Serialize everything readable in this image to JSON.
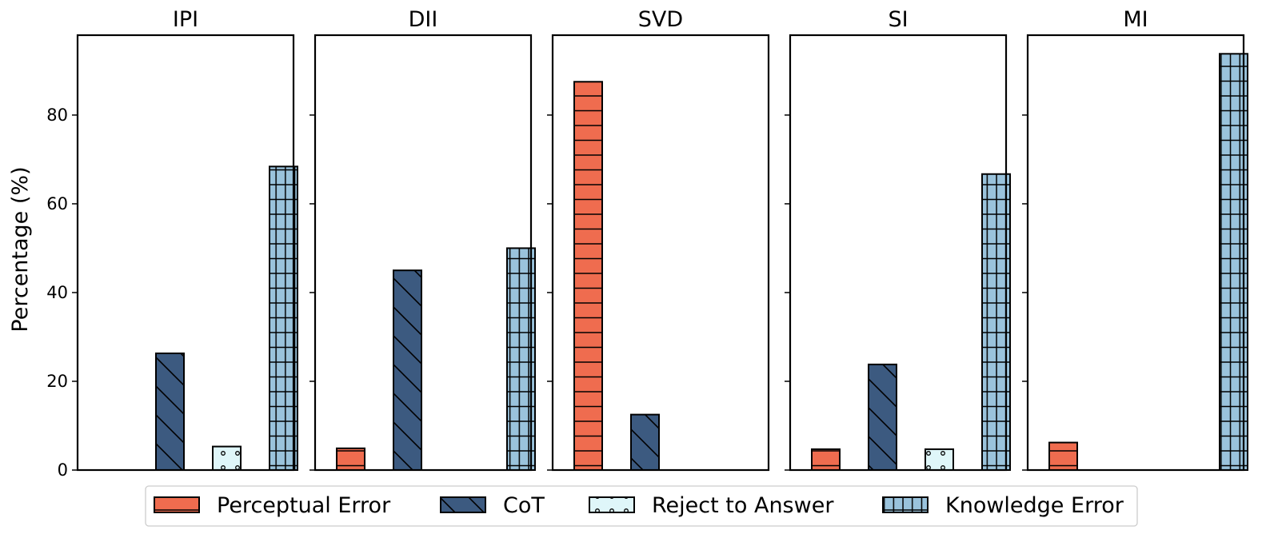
{
  "chart_data": {
    "type": "bar",
    "ylabel": "Percentage (%)",
    "ylim": [
      0,
      98
    ],
    "yticks": [
      0,
      20,
      40,
      60,
      80
    ],
    "grid": false,
    "legend_position": "bottom",
    "categories": [
      "IPI",
      "DII",
      "SVD",
      "SI",
      "MI"
    ],
    "series": [
      {
        "name": "Perceptual Error",
        "color": "#ef6c4f",
        "hatch": "horizontal",
        "values": [
          0,
          4.9,
          87.5,
          4.7,
          6.2
        ]
      },
      {
        "name": "CoT",
        "color": "#3c5a80",
        "hatch": "backslash",
        "values": [
          26.3,
          45.0,
          12.5,
          23.8,
          0
        ]
      },
      {
        "name": "Reject to Answer",
        "color": "#dff6f9",
        "hatch": "dots",
        "values": [
          5.3,
          0,
          0,
          4.7,
          0
        ]
      },
      {
        "name": "Knowledge Error",
        "color": "#9ac3dc",
        "hatch": "grid",
        "values": [
          68.4,
          50.0,
          0,
          66.7,
          93.8
        ]
      }
    ]
  }
}
